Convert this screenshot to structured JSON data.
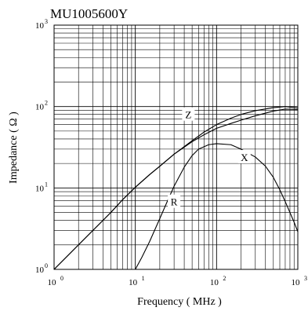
{
  "chart_data": {
    "type": "line",
    "title": "MU1005600Y",
    "xlabel": "Frequency ( MHz )",
    "ylabel": "Impedance ( Ω )",
    "x_scale": "log",
    "y_scale": "log",
    "xlim": [
      1,
      1000
    ],
    "ylim": [
      1,
      1000
    ],
    "x_ticks": [
      {
        "value": 1,
        "base": "10",
        "exp": "0"
      },
      {
        "value": 10,
        "base": "10",
        "exp": "1"
      },
      {
        "value": 100,
        "base": "10",
        "exp": "2"
      },
      {
        "value": 1000,
        "base": "10",
        "exp": "3"
      }
    ],
    "y_ticks": [
      {
        "value": 1,
        "base": "10",
        "exp": "0"
      },
      {
        "value": 10,
        "base": "10",
        "exp": "1"
      },
      {
        "value": 100,
        "base": "10",
        "exp": "2"
      },
      {
        "value": 1000,
        "base": "10",
        "exp": "3"
      }
    ],
    "grid": true,
    "series": [
      {
        "name": "Z",
        "label_at": {
          "x": 45,
          "y": 80
        },
        "x": [
          1,
          1.5,
          2,
          3,
          5,
          7,
          10,
          15,
          20,
          30,
          50,
          70,
          100,
          150,
          200,
          300,
          500,
          700,
          1000
        ],
        "y": [
          1.0,
          1.5,
          2.0,
          3.0,
          5.0,
          7.2,
          10.2,
          14.6,
          18.5,
          26.0,
          38.0,
          48.5,
          60.0,
          72.0,
          80.0,
          89.0,
          97.0,
          100.0,
          96.0
        ]
      },
      {
        "name": "X",
        "label_at": {
          "x": 220,
          "y": 24
        },
        "x": [
          1,
          1.5,
          2,
          3,
          5,
          7,
          10,
          15,
          20,
          30,
          50,
          70,
          100,
          150,
          200,
          300,
          500,
          700,
          1000
        ],
        "y": [
          1.0,
          1.5,
          2.0,
          3.0,
          5.0,
          7.2,
          10.2,
          14.6,
          18.5,
          26.0,
          37.0,
          45.0,
          54.0,
          62.0,
          68.0,
          77.0,
          88.0,
          93.0,
          92.0
        ]
      },
      {
        "name": "R",
        "label_at": {
          "x": 30,
          "y": 6.8
        },
        "x": [
          10,
          12,
          15,
          20,
          25,
          30,
          40,
          50,
          60,
          80,
          100,
          150,
          200,
          300,
          400,
          500,
          600,
          700,
          800,
          900,
          1000
        ],
        "y": [
          1.0,
          1.4,
          2.2,
          4.2,
          7.0,
          10.5,
          18.0,
          25.0,
          30.0,
          34.0,
          35.0,
          34.0,
          30.0,
          24.0,
          18.5,
          13.5,
          9.5,
          6.8,
          5.0,
          3.8,
          2.9
        ]
      }
    ]
  }
}
